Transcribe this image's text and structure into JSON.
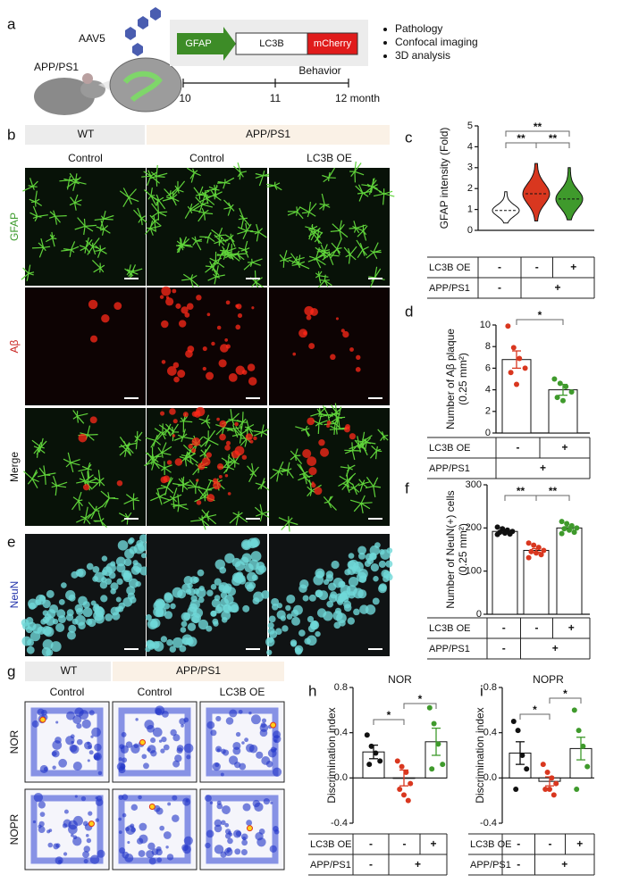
{
  "panel_a": {
    "label": "a",
    "vector": "AAV5",
    "model": "APP/PS1",
    "construct": [
      "GFAP",
      "LC3B",
      "mCherry"
    ],
    "timeline": [
      "10",
      "11",
      "12 month"
    ],
    "phase": "Behavior",
    "analyses": [
      "Pathology",
      "Confocal imaging",
      "3D analysis"
    ]
  },
  "panel_b": {
    "label": "b",
    "groups": [
      "WT",
      "APP/PS1"
    ],
    "columns": [
      "Control",
      "Control",
      "LC3B OE"
    ],
    "rows": [
      "GFAP",
      "Aβ",
      "Merge"
    ]
  },
  "panel_e": {
    "label": "e",
    "row": "NeuN"
  },
  "panel_c": {
    "label": "c",
    "type": "violin",
    "y_label": [
      "GFAP intensity (Fold)"
    ],
    "ylim": [
      0,
      5
    ],
    "yticks": [
      0,
      1,
      2,
      3,
      4,
      5
    ],
    "medians": [
      0.95,
      1.75,
      1.5
    ],
    "mins": [
      0.35,
      0.45,
      0.5
    ],
    "maxs": [
      1.85,
      3.2,
      3.0
    ],
    "colors": [
      "#ffffff",
      "#d9371f",
      "#3f9a2c"
    ],
    "significance": [
      "**",
      "**",
      "**"
    ],
    "conditions": [
      {
        "name": "LC3B OE",
        "cells": [
          "-",
          "-",
          "+"
        ]
      },
      {
        "name": "APP/PS1",
        "cells": [
          "-",
          "+"
        ]
      }
    ]
  },
  "panel_d": {
    "label": "d",
    "type": "bar",
    "y_label": [
      "Number of Aβ plaque",
      "(0.25 mm²)"
    ],
    "ylim": [
      0,
      10
    ],
    "yticks": [
      0,
      2,
      4,
      6,
      8,
      10
    ],
    "values": [
      6.8,
      4.0
    ],
    "errors": [
      0.8,
      0.5
    ],
    "points": [
      [
        9.9,
        7.9,
        6.9,
        6.0,
        5.6,
        4.5
      ],
      [
        5.0,
        4.6,
        4.3,
        3.8,
        3.3,
        3.0
      ]
    ],
    "colors": [
      "#d9371f",
      "#3f9a2c"
    ],
    "significance": [
      "*"
    ],
    "conditions": [
      {
        "name": "LC3B OE",
        "cells": [
          "-",
          "+"
        ]
      },
      {
        "name": "APP/PS1",
        "cells": [
          "+"
        ]
      }
    ]
  },
  "panel_f": {
    "label": "f",
    "type": "bar",
    "y_label": [
      "Number of NeuN(+) cells",
      "(0.25 mm²)"
    ],
    "ylim": [
      0,
      300
    ],
    "yticks": [
      0,
      100,
      200,
      300
    ],
    "values": [
      192,
      148,
      200
    ],
    "errors": [
      3,
      4,
      3
    ],
    "points": [
      [
        202,
        198,
        195,
        192,
        190,
        188,
        186,
        185
      ],
      [
        165,
        160,
        155,
        148,
        145,
        142,
        138,
        131
      ],
      [
        215,
        210,
        205,
        200,
        198,
        195,
        190,
        187
      ]
    ],
    "colors": [
      "#111111",
      "#d9371f",
      "#3f9a2c"
    ],
    "significance": [
      "**",
      "**"
    ],
    "conditions": [
      {
        "name": "LC3B OE",
        "cells": [
          "-",
          "-",
          "+"
        ]
      },
      {
        "name": "APP/PS1",
        "cells": [
          "-",
          "+"
        ]
      }
    ]
  },
  "panel_g": {
    "label": "g",
    "groups": [
      "WT",
      "APP/PS1"
    ],
    "columns": [
      "Control",
      "Control",
      "LC3B OE"
    ],
    "rows": [
      "NOR",
      "NOPR"
    ]
  },
  "panel_h": {
    "label": "h",
    "type": "bar",
    "title": "NOR",
    "y_label": [
      "Discrimination index"
    ],
    "ylim": [
      -0.4,
      0.8
    ],
    "yticks": [
      -0.4,
      {
        "value": 0,
        "label": "0.0"
      },
      0.4,
      0.8
    ],
    "values": [
      0.23,
      0.0,
      0.32
    ],
    "errors": [
      0.06,
      0.07,
      0.12
    ],
    "points": [
      [
        0.38,
        0.28,
        0.22,
        0.15,
        0.12
      ],
      [
        0.15,
        0.1,
        0.05,
        -0.05,
        -0.1,
        -0.15,
        -0.2
      ],
      [
        0.62,
        0.48,
        0.3,
        0.12,
        0.08
      ]
    ],
    "colors": [
      "#111111",
      "#d9371f",
      "#3f9a2c"
    ],
    "significance": [
      "*",
      "*"
    ],
    "conditions": [
      {
        "name": "LC3B OE",
        "cells": [
          "-",
          "-",
          "+"
        ]
      },
      {
        "name": "APP/PS1",
        "cells": [
          "-",
          "+"
        ]
      }
    ]
  },
  "panel_i": {
    "label": "i",
    "type": "bar",
    "title": "NOPR",
    "y_label": [
      "Discrimination index"
    ],
    "ylim": [
      -0.4,
      0.8
    ],
    "yticks": [
      -0.4,
      {
        "value": 0,
        "label": "0.0"
      },
      0.4,
      0.8
    ],
    "values": [
      0.22,
      -0.03,
      0.26
    ],
    "errors": [
      0.1,
      0.04,
      0.1
    ],
    "points": [
      [
        0.5,
        0.42,
        0.2,
        0.08,
        -0.1
      ],
      [
        0.12,
        0.05,
        0.0,
        -0.05,
        -0.1,
        -0.1,
        -0.15
      ],
      [
        0.6,
        0.42,
        0.28,
        0.1,
        -0.1
      ]
    ],
    "colors": [
      "#111111",
      "#d9371f",
      "#3f9a2c"
    ],
    "significance": [
      "*",
      "*"
    ],
    "conditions": [
      {
        "name": "LC3B OE",
        "cells": [
          "-",
          "-",
          "+"
        ]
      },
      {
        "name": "APP/PS1",
        "cells": [
          "-",
          "+"
        ]
      }
    ]
  }
}
